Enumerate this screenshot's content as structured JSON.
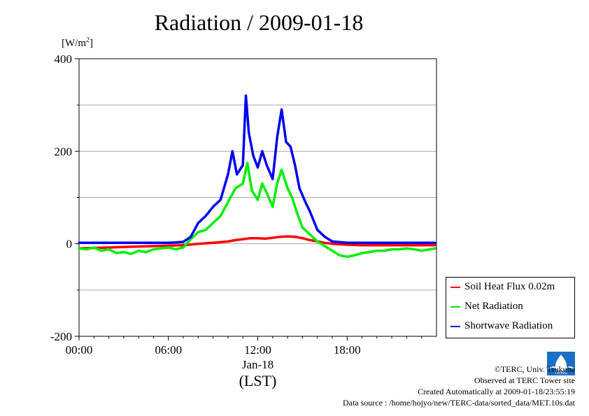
{
  "title": "Radiation / 2009-01-18",
  "unit_label": "[W/m",
  "unit_sup": "2",
  "unit_close": "]",
  "chart_data": {
    "type": "line",
    "title": "Radiation / 2009-01-18",
    "ylabel": "[W/m2]",
    "xlabel": "(LST)",
    "x_unit": "hour",
    "xlim": [
      0,
      24
    ],
    "ylim": [
      -200,
      400
    ],
    "x_ticks": [
      "00:00",
      "06:00",
      "12:00",
      "18:00"
    ],
    "x_date_label": "Jan-18",
    "x_sublabel": "(LST)",
    "y_ticks": [
      "-200",
      "0",
      "200",
      "400"
    ],
    "grid": true,
    "legend_position": "bottom-right outside",
    "series": [
      {
        "name": "Soil Heat Flux 0.02m",
        "color": "#ff0000",
        "x": [
          0,
          1,
          2,
          3,
          4,
          5,
          6,
          7,
          8,
          9,
          10,
          10.5,
          11,
          11.5,
          12,
          12.5,
          13,
          13.5,
          14,
          14.5,
          15,
          15.5,
          16,
          16.5,
          17,
          18,
          19,
          20,
          21,
          22,
          23,
          23.9
        ],
        "y": [
          -10,
          -9,
          -8,
          -7,
          -6,
          -5,
          -4,
          -3,
          0,
          2,
          5,
          8,
          10,
          12,
          12,
          11,
          13,
          15,
          16,
          15,
          12,
          8,
          5,
          2,
          0,
          -2,
          -3,
          -3,
          -3,
          -3,
          -3,
          -3
        ]
      },
      {
        "name": "Net Radiation",
        "color": "#00ee00",
        "x": [
          0,
          0.5,
          1,
          1.5,
          2,
          2.5,
          3,
          3.5,
          4,
          4.5,
          5,
          5.5,
          6,
          6.5,
          7,
          7.5,
          8,
          8.5,
          9,
          9.5,
          10,
          10.5,
          11,
          11.3,
          11.6,
          12,
          12.3,
          12.6,
          13,
          13.3,
          13.6,
          14,
          14.3,
          14.6,
          15,
          15.5,
          16,
          16.5,
          17,
          17.5,
          18,
          18.5,
          19,
          19.5,
          20,
          20.5,
          21,
          21.5,
          22,
          22.5,
          23,
          23.9
        ],
        "y": [
          -10,
          -12,
          -8,
          -15,
          -12,
          -20,
          -18,
          -22,
          -15,
          -18,
          -12,
          -10,
          -8,
          -12,
          -8,
          10,
          25,
          30,
          45,
          60,
          90,
          120,
          130,
          175,
          115,
          95,
          130,
          110,
          80,
          130,
          160,
          120,
          100,
          70,
          35,
          20,
          5,
          -5,
          -15,
          -25,
          -28,
          -25,
          -20,
          -18,
          -15,
          -15,
          -12,
          -12,
          -10,
          -12,
          -15,
          -10
        ]
      },
      {
        "name": "Shortwave Radiation",
        "color": "#0000ee",
        "x": [
          0,
          1,
          2,
          3,
          4,
          5,
          6,
          6.5,
          7,
          7.5,
          8,
          8.5,
          9,
          9.5,
          10,
          10.3,
          10.6,
          11,
          11.2,
          11.4,
          11.7,
          12,
          12.3,
          12.6,
          13,
          13.3,
          13.6,
          13.9,
          14.2,
          14.5,
          14.8,
          15.2,
          15.5,
          16,
          16.5,
          17,
          18,
          19,
          20,
          21,
          22,
          23,
          23.9
        ],
        "y": [
          2,
          2,
          2,
          2,
          2,
          2,
          2,
          3,
          4,
          15,
          45,
          60,
          80,
          95,
          150,
          200,
          150,
          170,
          320,
          240,
          190,
          165,
          200,
          170,
          140,
          230,
          290,
          220,
          210,
          170,
          120,
          90,
          70,
          30,
          15,
          5,
          2,
          2,
          2,
          2,
          2,
          2,
          2
        ]
      }
    ]
  },
  "credits": {
    "copyright": "©TERC, Univ. Tsukuba",
    "site": "Observed at TERC Tower site",
    "created": "Created Automatically at 2009-01-18/23:55:19",
    "source": "Data source : /home/hojyo/new/TERC-data/sorted_data/MET.10s.dat"
  },
  "logo_text": "TERC"
}
